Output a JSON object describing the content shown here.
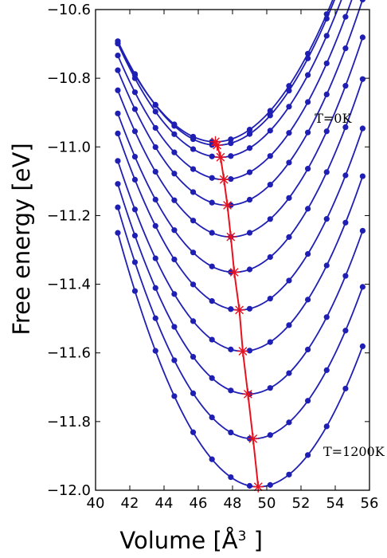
{
  "chart_data": {
    "type": "line",
    "xlabel": "Volume [Å",
    "xlabel_sup": "3",
    "xlabel_close": " ]",
    "ylabel": "Free energy [eV]",
    "xlim": [
      40,
      56
    ],
    "ylim": [
      -12.0,
      -10.6
    ],
    "xticks": [
      "40",
      "42",
      "44",
      "46",
      "48",
      "50",
      "52",
      "54",
      "56"
    ],
    "yticks": [
      "-10.6",
      "-10.8",
      "-11.0",
      "-11.2",
      "-11.4",
      "-11.6",
      "-11.8",
      "-12.0"
    ],
    "annotations": [
      {
        "text": "T=0K",
        "x": 52.8,
        "y": -10.93
      },
      {
        "text": "T=1200K",
        "x": 53.3,
        "y": -11.9
      }
    ],
    "grid": false,
    "curve_color": "#1f1fb4",
    "minimum_line_color": "#e8121e",
    "x": [
      41.3,
      42.3,
      43.5,
      44.6,
      45.7,
      46.8,
      47.9,
      49.0,
      50.2,
      51.3,
      52.4,
      53.5,
      54.6,
      55.6
    ],
    "series": [
      {
        "min_v": 47.0,
        "min_f": -10.985,
        "curv": 0.0088
      },
      {
        "min_v": 47.1,
        "min_f": -10.995,
        "curv": 0.009
      },
      {
        "min_v": 47.3,
        "min_f": -11.03,
        "curv": 0.0092
      },
      {
        "min_v": 47.5,
        "min_f": -11.095,
        "curv": 0.0094
      },
      {
        "min_v": 47.7,
        "min_f": -11.17,
        "curv": 0.0096
      },
      {
        "min_v": 47.9,
        "min_f": -11.262,
        "curv": 0.0098
      },
      {
        "min_v": 48.1,
        "min_f": -11.365,
        "curv": 0.01
      },
      {
        "min_v": 48.4,
        "min_f": -11.475,
        "curv": 0.0102
      },
      {
        "min_v": 48.6,
        "min_f": -11.595,
        "curv": 0.0104
      },
      {
        "min_v": 48.9,
        "min_f": -11.72,
        "curv": 0.0106
      },
      {
        "min_v": 49.2,
        "min_f": -11.85,
        "curv": 0.0108
      },
      {
        "min_v": 49.5,
        "min_f": -11.99,
        "curv": 0.011
      }
    ]
  }
}
